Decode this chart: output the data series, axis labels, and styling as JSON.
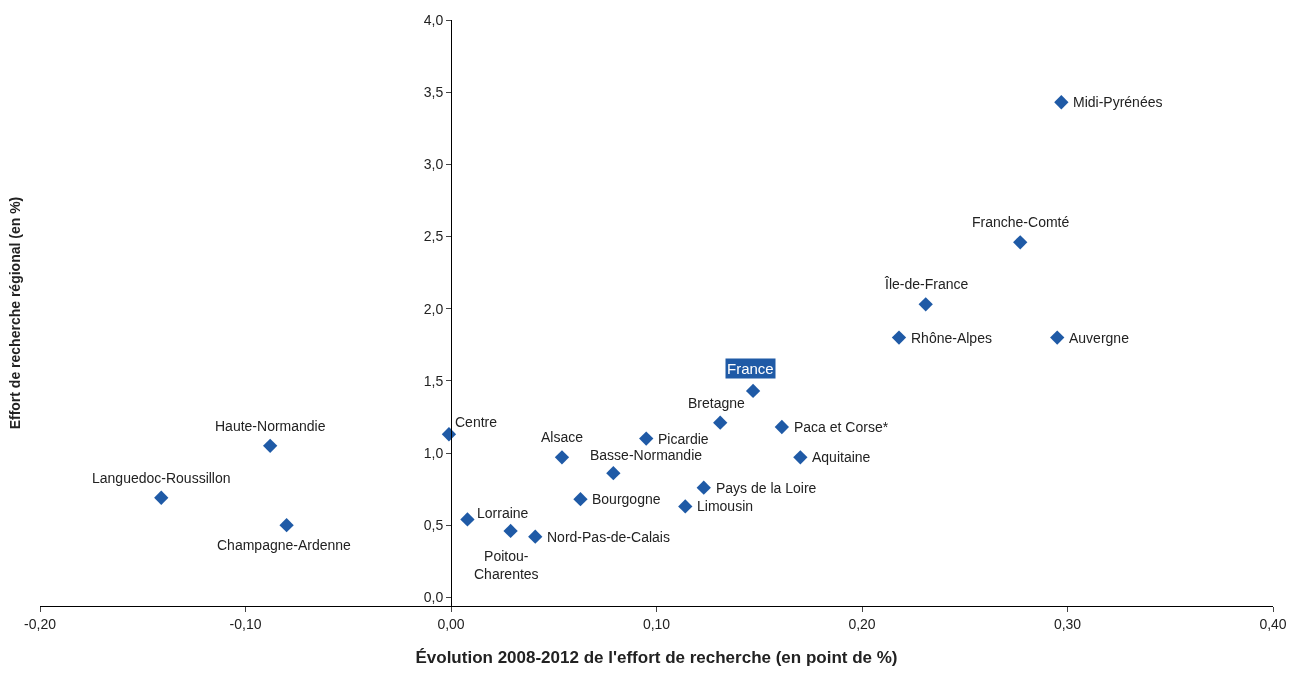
{
  "chart_data": {
    "type": "scatter",
    "xlabel": "Évolution 2008-2012 de l'effort de recherche (en point de %)",
    "ylabel": "Effort de recherche régional (en %)",
    "x": [
      0.297,
      0.277,
      0.231,
      0.218,
      0.295,
      0.147,
      0.131,
      0.161,
      0.17,
      0.095,
      0.054,
      0.079,
      0.123,
      0.114,
      0.063,
      -0.001,
      0.008,
      0.029,
      0.041,
      -0.088,
      -0.141,
      -0.08
    ],
    "values": [
      3.43,
      2.46,
      2.03,
      1.8,
      1.8,
      1.43,
      1.21,
      1.18,
      0.97,
      1.1,
      0.97,
      0.86,
      0.76,
      0.63,
      0.68,
      1.13,
      0.54,
      0.46,
      0.42,
      1.05,
      0.69,
      0.5
    ],
    "color": "#1f5aa6",
    "marker": "diamond",
    "xlim": [
      -0.2,
      0.4
    ],
    "xticks": [
      {
        "value": -0.2,
        "label": "-0,20"
      },
      {
        "value": -0.1,
        "label": "-0,10"
      },
      {
        "value": 0,
        "label": "0,00"
      },
      {
        "value": 0.1,
        "label": "0,10"
      },
      {
        "value": 0.2,
        "label": "0,20"
      },
      {
        "value": 0.3,
        "label": "0,30"
      },
      {
        "value": 0.4,
        "label": "0,40"
      }
    ],
    "ylim": [
      -0.06,
      4
    ],
    "yticks": [
      {
        "value": 0,
        "label": "0,0"
      },
      {
        "value": 0.5,
        "label": "0,5"
      },
      {
        "value": 1,
        "label": "1,0"
      },
      {
        "value": 1.5,
        "label": "1,5"
      },
      {
        "value": 2,
        "label": "2,0"
      },
      {
        "value": 2.5,
        "label": "2,5"
      },
      {
        "value": 3,
        "label": "3,0"
      },
      {
        "value": 3.5,
        "label": "3,5"
      },
      {
        "value": 4,
        "label": "4,0"
      }
    ],
    "annotations": [
      {
        "text": "Midi-Pyrénées",
        "x": 0.297,
        "y": 3.43
      },
      {
        "text": "Franche-Comté",
        "x": 0.277,
        "y": 2.46
      },
      {
        "text": "Île-de-France",
        "x": 0.231,
        "y": 2.03
      },
      {
        "text": "Rhône-Alpes",
        "x": 0.218,
        "y": 1.8
      },
      {
        "text": "Auvergne",
        "x": 0.295,
        "y": 1.8
      },
      {
        "text": "France",
        "x": 0.147,
        "y": 1.43
      },
      {
        "text": "Bretagne",
        "x": 0.131,
        "y": 1.21
      },
      {
        "text": "Paca et Corse*",
        "x": 0.161,
        "y": 1.18
      },
      {
        "text": "Aquitaine",
        "x": 0.17,
        "y": 0.97
      },
      {
        "text": "Picardie",
        "x": 0.095,
        "y": 1.1
      },
      {
        "text": "Alsace",
        "x": 0.054,
        "y": 0.97
      },
      {
        "text": "Basse-Normandie",
        "x": 0.079,
        "y": 0.86
      },
      {
        "text": "Pays de la Loire",
        "x": 0.123,
        "y": 0.76
      },
      {
        "text": "Limousin",
        "x": 0.114,
        "y": 0.63
      },
      {
        "text": "Bourgogne",
        "x": 0.063,
        "y": 0.68
      },
      {
        "text": "Centre",
        "x": -0.001,
        "y": 1.13
      },
      {
        "text": "Lorraine",
        "x": 0.008,
        "y": 0.54
      },
      {
        "text": "Poitou-\nCharentes",
        "x": 0.029,
        "y": 0.46
      },
      {
        "text": "Nord-Pas-de-Calais",
        "x": 0.041,
        "y": 0.42
      },
      {
        "text": "Haute-Normandie",
        "x": -0.088,
        "y": 1.05
      },
      {
        "text": "Languedoc-Roussillon",
        "x": -0.141,
        "y": 0.69
      },
      {
        "text": "Champagne-Ardenne",
        "x": -0.08,
        "y": 0.5
      }
    ]
  }
}
